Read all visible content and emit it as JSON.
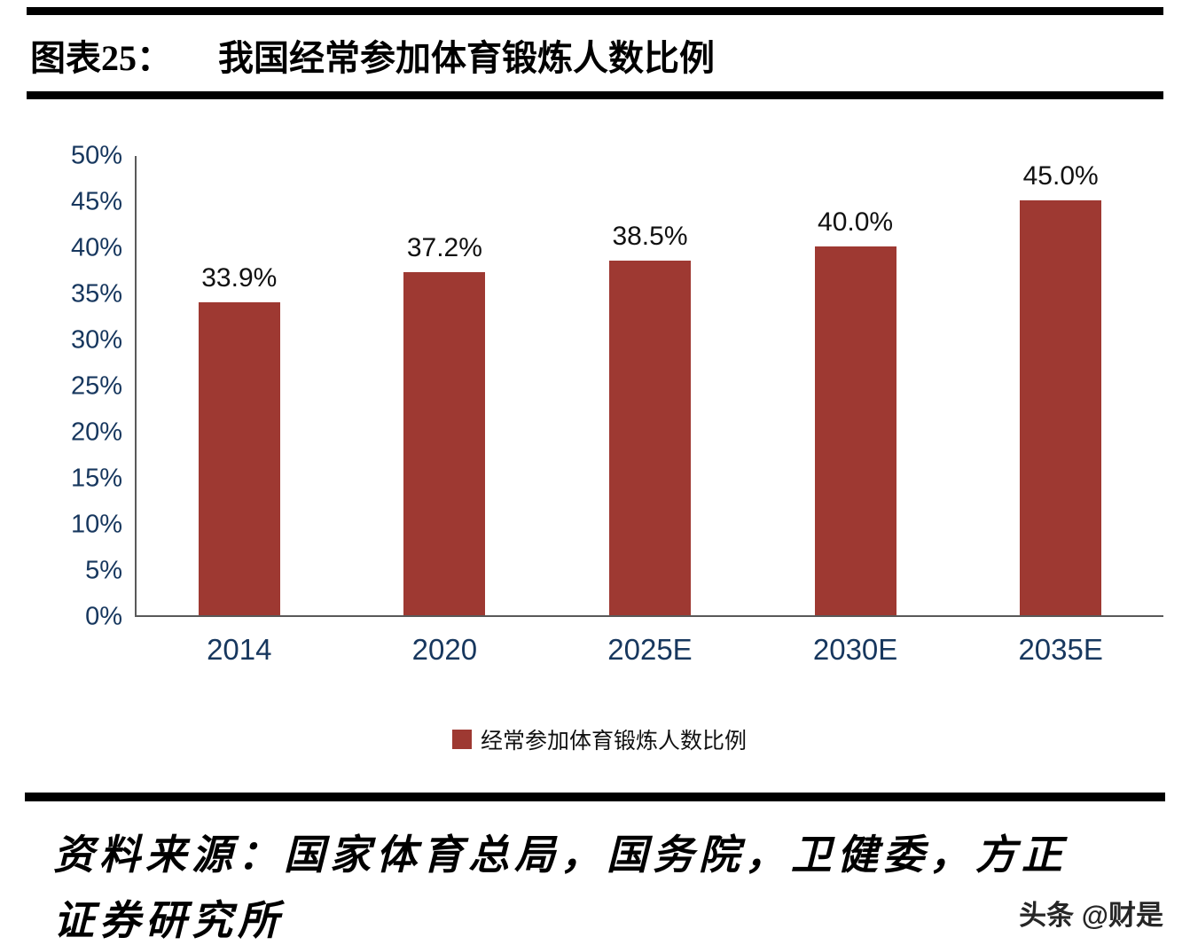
{
  "header": {
    "label": "图表25：",
    "title": "我国经常参加体育锻炼人数比例"
  },
  "chart_data": {
    "type": "bar",
    "title": "我国经常参加体育锻炼人数比例",
    "categories": [
      "2014",
      "2020",
      "2025E",
      "2030E",
      "2035E"
    ],
    "values": [
      33.9,
      37.2,
      38.5,
      40.0,
      45.0
    ],
    "data_labels": [
      "33.9%",
      "37.2%",
      "38.5%",
      "40.0%",
      "45.0%"
    ],
    "xlabel": "",
    "ylabel": "",
    "ylim": [
      0,
      50
    ],
    "ytick_step": 5,
    "ytick_labels": [
      "0%",
      "5%",
      "10%",
      "15%",
      "20%",
      "25%",
      "30%",
      "35%",
      "40%",
      "45%",
      "50%"
    ],
    "grid": false,
    "legend_position": "bottom",
    "legend_entries": [
      "经常参加体育锻炼人数比例"
    ],
    "bar_color": "#9E3932"
  },
  "legend": {
    "label": "经常参加体育锻炼人数比例"
  },
  "footer": {
    "source_line1": "资料来源：国家体育总局，国务院，卫健委，方正",
    "source_line2": "证券研究所",
    "watermark": "头条 @财是"
  },
  "colors": {
    "bar": "#9E3932",
    "axis_text": "#17375E",
    "value_text": "#111111",
    "rule": "#000000"
  }
}
